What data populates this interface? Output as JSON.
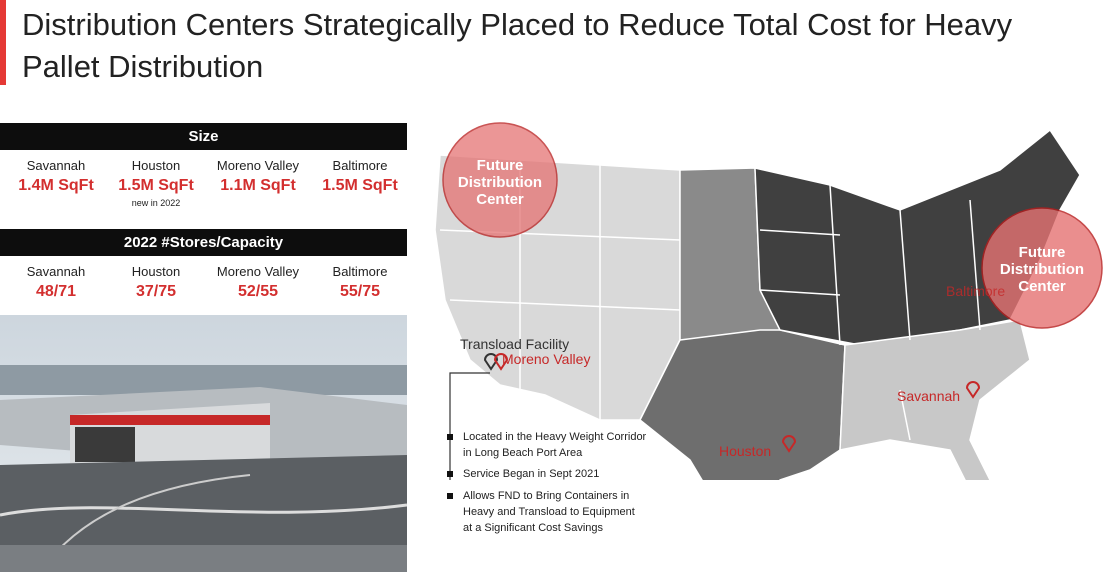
{
  "header": {
    "title": "Distribution Centers Strategically Placed to Reduce Total Cost for Heavy Pallet Distribution"
  },
  "size": {
    "heading": "Size",
    "items": [
      {
        "name": "Savannah",
        "value": "1.4M SqFt"
      },
      {
        "name": "Houston",
        "value": "1.5M SqFt",
        "note": "new in 2022"
      },
      {
        "name": "Moreno Valley",
        "value": "1.1M SqFt"
      },
      {
        "name": "Baltimore",
        "value": "1.5M SqFt"
      }
    ]
  },
  "stores": {
    "heading": "2022 #Stores/Capacity",
    "items": [
      {
        "name": "Savannah",
        "value": "48/71"
      },
      {
        "name": "Houston",
        "value": "37/75"
      },
      {
        "name": "Moreno Valley",
        "value": "52/55"
      },
      {
        "name": "Baltimore",
        "value": "55/75"
      }
    ]
  },
  "map": {
    "future_west": "Future Distribution Center",
    "future_east": "Future Distribution Center",
    "transload": "Transload Facility",
    "moreno_valley": "Moreno Valley",
    "savannah": "Savannah",
    "houston": "Houston",
    "baltimore": "Baltimore"
  },
  "bullets": [
    "Located in the Heavy Weight Corridor in Long Beach Port Area",
    "Service Began in Sept 2021",
    "Allows FND to Bring Containers in Heavy and Transload to Equipment at a Significant Cost Savings"
  ]
}
